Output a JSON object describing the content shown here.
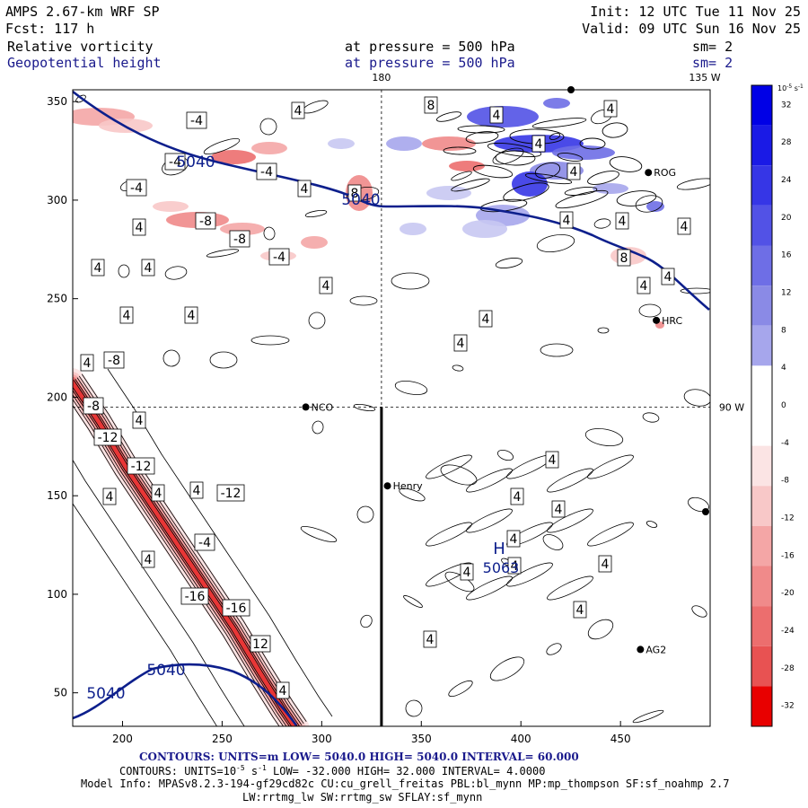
{
  "header": {
    "model_title": "AMPS 2.67-km WRF SP",
    "forecast": "Fcst:  117 h",
    "init": "Init: 12 UTC Tue 11 Nov 25",
    "valid": "Valid: 09 UTC Sun 16 Nov 25",
    "field1_name": "Relative vorticity",
    "field1_pressure": "at pressure =  500 hPa",
    "field1_smooth": "sm= 2",
    "field2_name": "Geopotential height",
    "field2_pressure": "at pressure =  500 hPa",
    "field2_smooth": "sm= 2"
  },
  "colors": {
    "blue_text": "#1a1a8c",
    "height_contour": "#0d1f8c",
    "colorbar_blue": [
      "#0000e6",
      "#1a1ae6",
      "#3636e6",
      "#5252e6",
      "#6e6ee6",
      "#8a8ae6",
      "#a6a6ec",
      "#c8c8f2",
      "#e4e4f8"
    ],
    "colorbar_red": [
      "#fbe4e4",
      "#f8c8c8",
      "#f4a6a6",
      "#f08a8a",
      "#ec6e6e",
      "#e85252",
      "#e83636",
      "#e81a1a",
      "#e80000"
    ]
  },
  "footer": {
    "line1_prefix": "CONTOURS:  UNITS=m  LOW=  5040.0        HIGH=  5040.0       INTERVAL=   60.000",
    "line2_prefix": "CONTOURS:  UNITS=10",
    "line2_exp": "-5",
    "line2_rest": " s",
    "line2_exp2": "-1",
    "line2_tail": "  LOW= -32.000       HIGH=  32.000       INTERVAL=   4.0000",
    "line3": "Model Info: MPASv8.2.3-194-gf29cd82c CU:cu_grell_freitas PBL:bl_mynn MP:mp_thompson SF:sf_noahmp 2.7",
    "line4": "LW:rrtmg_lw SW:rrtmg_sw SFLAY:sf_mynn"
  },
  "chart_data": {
    "type": "contour",
    "title": "Relative vorticity and Geopotential height at 500 hPa",
    "x_ticks": [
      200,
      250,
      300,
      350,
      400,
      450
    ],
    "y_ticks": [
      50,
      100,
      150,
      200,
      250,
      300,
      350
    ],
    "xlim": [
      175,
      495
    ],
    "ylim": [
      33,
      356
    ],
    "top_labels": [
      "180",
      "135 W"
    ],
    "right_label": "90 W",
    "meridian_x": 330,
    "parallel_y": 195,
    "stations": [
      {
        "name": "NCO",
        "x": 292,
        "y": 195
      },
      {
        "name": "Henry",
        "x": 333,
        "y": 155
      },
      {
        "name": "ROG",
        "x": 464,
        "y": 314
      },
      {
        "name": "HRC",
        "x": 468,
        "y": 239
      },
      {
        "name": "AG2",
        "x": 460,
        "y": 72
      }
    ],
    "height_contour_labels": [
      "5040",
      "5040",
      "5040",
      "5040"
    ],
    "high_label": "H",
    "high_value": "5063",
    "vorticity_labels": [
      "-4",
      "4",
      "8",
      "4",
      "4",
      "-4",
      "-4",
      "-4",
      "-8",
      "-8",
      "-4",
      "4",
      "4",
      "4",
      "4",
      "4",
      "4",
      "4",
      "4",
      "4",
      "4",
      "4",
      "4",
      "4",
      "4",
      "8",
      "4",
      "4",
      "8",
      "4",
      "-8",
      "4",
      "-8",
      "-12",
      "-12",
      "4",
      "4",
      "4",
      "-12",
      "4",
      "-4",
      "-16",
      "-16",
      "12",
      "4",
      "4",
      "4",
      "4",
      "4",
      "4",
      "4",
      "4",
      "4",
      "4"
    ],
    "colorbar_unit": "10",
    "colorbar_unit_exp": "-5",
    "colorbar_unit_rest": " s",
    "colorbar_unit_exp2": "-1",
    "colorbar_ticks": [
      "32",
      "28",
      "24",
      "20",
      "16",
      "12",
      "8",
      "4",
      "0",
      "-4",
      "-8",
      "-12",
      "-16",
      "-20",
      "-24",
      "-28",
      "-32"
    ]
  }
}
